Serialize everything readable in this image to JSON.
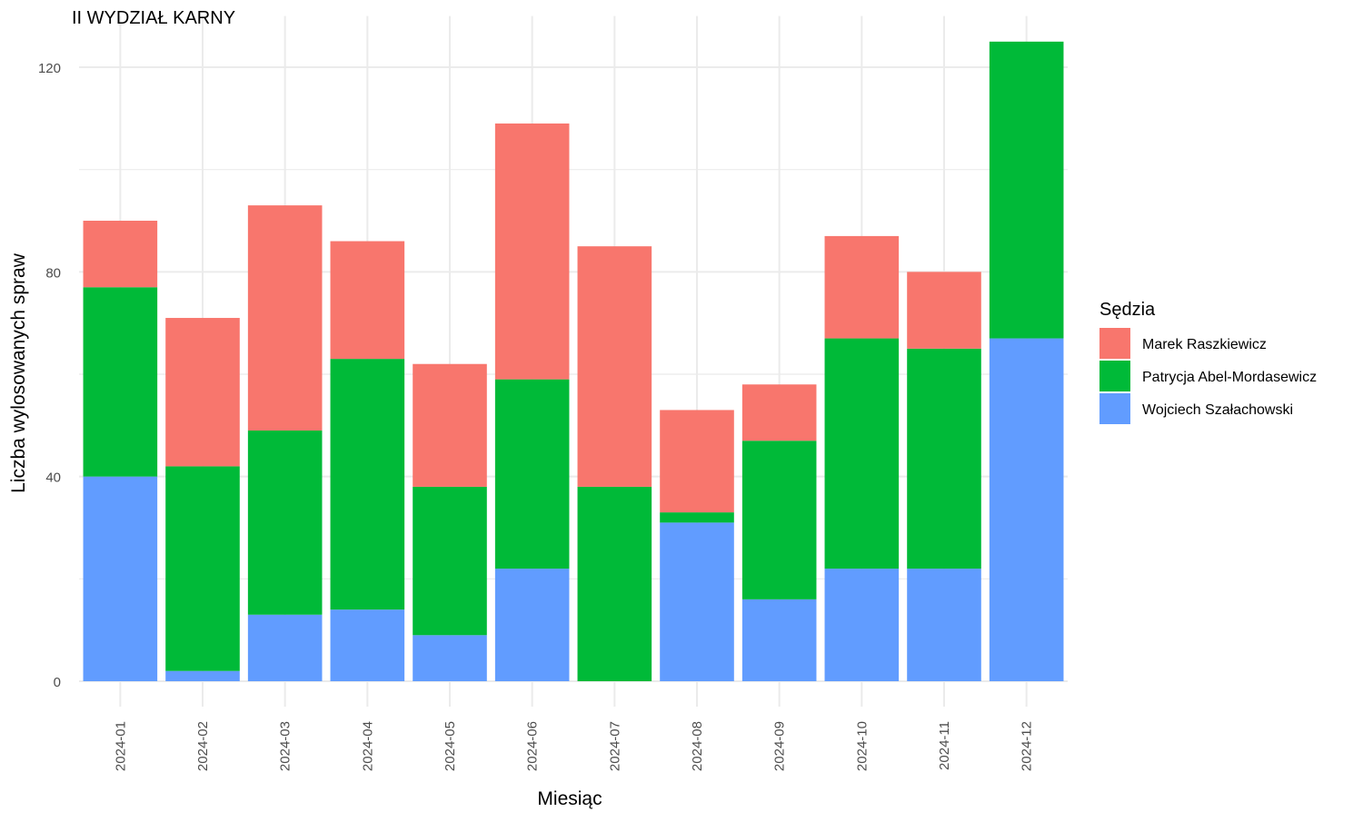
{
  "chart_data": {
    "type": "bar",
    "stacked": true,
    "title": "II WYDZIAŁ KARNY",
    "xlabel": "Miesiąc",
    "ylabel": "Liczba wylosowanych spraw",
    "ylim": [
      0,
      130
    ],
    "yticks": [
      0,
      40,
      80,
      120
    ],
    "grid": true,
    "legend_position": "right",
    "legend_title": "Sędzia",
    "categories": [
      "2024-01",
      "2024-02",
      "2024-03",
      "2024-04",
      "2024-05",
      "2024-06",
      "2024-07",
      "2024-08",
      "2024-09",
      "2024-10",
      "2024-11",
      "2024-12"
    ],
    "series": [
      {
        "name": "Wojciech Szałachowski",
        "color": "#619CFF",
        "values": [
          40,
          2,
          13,
          14,
          9,
          22,
          0,
          31,
          16,
          22,
          22,
          67
        ]
      },
      {
        "name": "Patrycja Abel-Mordasewicz",
        "color": "#00BA38",
        "values": [
          37,
          40,
          36,
          49,
          29,
          37,
          38,
          2,
          31,
          45,
          43,
          58
        ]
      },
      {
        "name": "Marek Raszkiewicz",
        "color": "#F8766D",
        "values": [
          13,
          29,
          44,
          23,
          24,
          50,
          47,
          20,
          11,
          20,
          15,
          0
        ]
      }
    ],
    "legend_order": [
      "Marek Raszkiewicz",
      "Patrycja Abel-Mordasewicz",
      "Wojciech Szałachowski"
    ]
  }
}
